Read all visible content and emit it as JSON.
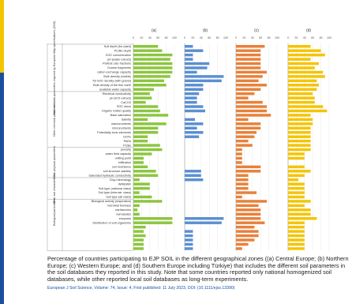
{
  "chart_data": {
    "type": "bar",
    "panels": [
      {
        "label": "(a)",
        "color": "#8cc63f",
        "values": [
          60,
          70,
          95,
          90,
          95,
          95,
          95,
          90,
          75,
          80,
          50,
          40,
          45,
          30,
          60,
          65,
          85,
          35,
          80,
          60,
          60,
          35,
          35,
          65,
          70,
          45,
          25,
          25,
          35,
          55,
          60,
          15,
          40,
          40,
          15,
          45,
          70,
          15,
          10,
          15,
          95,
          95,
          30,
          25,
          30,
          25,
          25,
          25
        ]
      },
      {
        "label": "(b)",
        "color": "#5b8fd1",
        "values": [
          20,
          45,
          20,
          20,
          60,
          55,
          30,
          95,
          90,
          45,
          45,
          35,
          30,
          30,
          45,
          50,
          0,
          25,
          45,
          30,
          45,
          35,
          0,
          0,
          0,
          0,
          0,
          0,
          0,
          40,
          40,
          45,
          0,
          0,
          0,
          0,
          0,
          0,
          0,
          0,
          95,
          90,
          0,
          20,
          20,
          20,
          20,
          20
        ]
      },
      {
        "label": "(c)",
        "color": "#e8813a",
        "values": [
          70,
          60,
          60,
          60,
          60,
          60,
          75,
          65,
          55,
          75,
          60,
          45,
          30,
          65,
          75,
          75,
          85,
          30,
          60,
          60,
          50,
          45,
          30,
          40,
          15,
          15,
          15,
          15,
          60,
          60,
          30,
          30,
          30,
          30,
          50,
          15,
          75,
          55,
          60,
          60,
          60,
          70,
          45,
          55,
          55,
          45,
          30,
          15
        ]
      },
      {
        "label": "(d)",
        "color": "#f5c400",
        "values": [
          55,
          80,
          90,
          55,
          75,
          65,
          85,
          90,
          70,
          75,
          70,
          60,
          65,
          65,
          85,
          95,
          55,
          60,
          60,
          55,
          55,
          55,
          55,
          55,
          55,
          40,
          40,
          0,
          40,
          55,
          40,
          25,
          40,
          40,
          40,
          40,
          55,
          40,
          55,
          55,
          70,
          40,
          40,
          40,
          40,
          40,
          40,
          40
        ]
      }
    ],
    "x_ticks": [
      "0",
      "20",
      "40",
      "60",
      "80",
      "100"
    ],
    "xlim": [
      0,
      100
    ],
    "categories": [
      "Soil depth (for plant)",
      "Profile depth",
      "SOC concentration",
      "pH (water extract)",
      "Particle size fractions",
      "Coarse fragments",
      "cation exchange capacity",
      "Bulk density (visible)",
      "Tot SOC density (with gravel)",
      "Bulk density of the fine earth",
      "available water capacity",
      "Electrical conductivity",
      "pH (KCl extract)",
      "CaCO3",
      "SOC stock",
      "Organic matter quality",
      "Base saturation",
      "Salinity",
      "macronutrients",
      "micronutrients",
      "Potentially toxic elements",
      "OCPs",
      "PAHs",
      "PCBs",
      "porosity",
      "water field capacity",
      "wilting point",
      "infiltration",
      "soil resistance",
      "soil structure stability",
      "Saturated hydraulic conductivity",
      "Clay mineralogy",
      "WRB/WR",
      "Soil type (national class)",
      "Soil type (internat. class)",
      "Soil type (all class)",
      "Biological activity (respiration)",
      "microbial biomass",
      "earthworms",
      "nematodes",
      "enzymes",
      "Distribution of soil organisms",
      "",
      "",
      "",
      "",
      "",
      ""
    ],
    "groups": [
      {
        "label": "Main soil data parameters required by European Map specifications (2019)",
        "from": 0,
        "to": 10
      },
      {
        "label": "Other chemical parameters",
        "from": 11,
        "to": 23
      },
      {
        "label": "Other physical parameters",
        "from": 24,
        "to": 30
      },
      {
        "label": "Other soil characteristics",
        "from": 31,
        "to": 35
      },
      {
        "label": "Biological parameters",
        "from": 36,
        "to": 41
      }
    ]
  },
  "caption": "Percentage of countries participating to EJP SOIL in the different geographical zones ((a) Central Europe; (b) Northern Europe; (c) Western Europe; and (d) Southern Europe including Türkiye) that includes the different soil parameters in the soil databases they reported in this study. Note that some countries reported only national homogenized soil databases, while other reported local soil databases as long-term experiments.",
  "citation": "European J Soil Science, Volume: 74, Issue: 4, First published: 11 July 2023, DOI: (10.1111/ejss.13390)",
  "colors": {
    "strip_top": "#f5c400",
    "strip_bottom": "#1a4fa0",
    "link": "#1a4fa0"
  }
}
